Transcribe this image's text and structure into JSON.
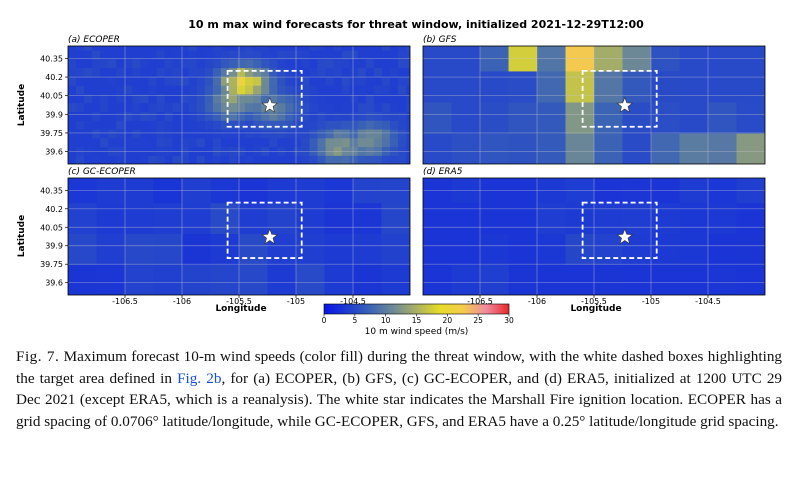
{
  "figure": {
    "title": "10 m max wind forecasts for threat window, initialized 2021-12-29T12:00",
    "colorbar": {
      "label": "10 m wind speed (m/s)",
      "ticks": [
        "0",
        "5",
        "10",
        "15",
        "20",
        "25",
        "30"
      ],
      "range": [
        0,
        30
      ],
      "stops": [
        "#0a14e6",
        "#1e3cd2",
        "#3c64b4",
        "#6e8a96",
        "#aab064",
        "#e6dc28",
        "#f4cc4c",
        "#f08ca0",
        "#e62828"
      ]
    }
  },
  "caption": {
    "fig_label": "Fig. 7.",
    "part1": " Maximum forecast 10-m wind speeds (color fill) during the threat window, with the white dashed boxes highlighting the target area defined in ",
    "link": "Fig. 2b",
    "part2": ", for (a) ECOPER, (b) GFS, (c) GC-ECOPER, and (d) ERA5, initialized at 1200 UTC 29 Dec 2021 (except ERA5, which is a reanalysis). The white star indicates the Marshall Fire ignition location. ECOPER has a grid spacing of 0.0706° latitude/longitude, while GC-ECOPER, GFS, and ERA5 have a 0.25° latitude/longitude grid spacing."
  },
  "chart_data": [
    {
      "type": "heatmap",
      "panel": "(a) ECOPER",
      "ylabel": "Latitude",
      "xlabel": "",
      "x_ticks": [],
      "y_ticks": [
        "40.35",
        "40.2",
        "40.05",
        "39.9",
        "39.75",
        "39.6"
      ],
      "xlim": [
        -107.0,
        -104.0
      ],
      "ylim": [
        39.5,
        40.45
      ],
      "base_speed": 4,
      "hotspots": [
        {
          "lon": -105.45,
          "lat": 40.15,
          "speed": 20
        },
        {
          "lon": -105.55,
          "lat": 40.0,
          "speed": 13
        },
        {
          "lon": -105.2,
          "lat": 39.95,
          "speed": 11
        },
        {
          "lon": -104.6,
          "lat": 39.65,
          "speed": 13
        },
        {
          "lon": -104.35,
          "lat": 39.7,
          "speed": 12
        }
      ],
      "target_box": {
        "lon": [
          -105.6,
          -104.95
        ],
        "lat": [
          39.8,
          40.25
        ]
      },
      "star": {
        "lon": -105.23,
        "lat": 39.97
      }
    },
    {
      "type": "heatmap",
      "panel": "(b) GFS",
      "ylabel": "",
      "xlabel": "",
      "x_ticks": [],
      "y_ticks": [],
      "xlim": [
        -107.0,
        -104.0
      ],
      "ylim": [
        39.5,
        40.45
      ],
      "base_speed": 5,
      "hotspots": [
        {
          "lon": -105.55,
          "lat": 40.35,
          "speed": 25
        },
        {
          "lon": -105.6,
          "lat": 40.05,
          "speed": 22
        },
        {
          "lon": -105.6,
          "lat": 39.75,
          "speed": 20
        },
        {
          "lon": -105.3,
          "lat": 40.3,
          "speed": 20
        },
        {
          "lon": -106.1,
          "lat": 40.4,
          "speed": 18
        },
        {
          "lon": -104.2,
          "lat": 39.6,
          "speed": 13
        },
        {
          "lon": -104.7,
          "lat": 39.55,
          "speed": 12
        }
      ],
      "target_box": {
        "lon": [
          -105.6,
          -104.95
        ],
        "lat": [
          39.8,
          40.25
        ]
      },
      "star": {
        "lon": -105.23,
        "lat": 39.97
      }
    },
    {
      "type": "heatmap",
      "panel": "(c) GC-ECOPER",
      "ylabel": "Latitude",
      "xlabel": "Longitude",
      "x_ticks": [
        "-106.5",
        "-106",
        "-105.5",
        "-105",
        "-104.5"
      ],
      "y_ticks": [
        "40.35",
        "40.2",
        "40.05",
        "39.9",
        "39.75",
        "39.6"
      ],
      "xlim": [
        -107.0,
        -104.0
      ],
      "ylim": [
        39.5,
        40.45
      ],
      "base_speed": 4,
      "hotspots": [],
      "target_box": {
        "lon": [
          -105.6,
          -104.95
        ],
        "lat": [
          39.8,
          40.25
        ]
      },
      "star": {
        "lon": -105.23,
        "lat": 39.97
      }
    },
    {
      "type": "heatmap",
      "panel": "(d) ERA5",
      "ylabel": "",
      "xlabel": "Longitude",
      "x_ticks": [
        "-106.5",
        "-106",
        "-105.5",
        "-105",
        "-104.5"
      ],
      "y_ticks": [],
      "xlim": [
        -107.0,
        -104.0
      ],
      "ylim": [
        39.5,
        40.45
      ],
      "base_speed": 3,
      "hotspots": [
        {
          "lon": -105.55,
          "lat": 39.95,
          "speed": 6
        }
      ],
      "target_box": {
        "lon": [
          -105.6,
          -104.95
        ],
        "lat": [
          39.8,
          40.25
        ]
      },
      "star": {
        "lon": -105.23,
        "lat": 39.97
      }
    }
  ]
}
